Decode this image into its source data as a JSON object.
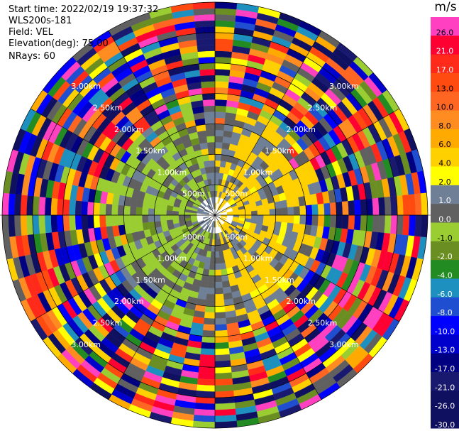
{
  "header": {
    "start_time": "Start time: 2022/02/19 19:37:32",
    "instrument": "WLS200s-181",
    "field": "Field: VEL",
    "elevation": "Elevation(deg): 75.00",
    "nrays": "NRays: 60"
  },
  "colorbar": {
    "unit": "m/s",
    "segments": [
      {
        "label": "26.0",
        "color": "#ff40c0"
      },
      {
        "label": "21.0",
        "color": "#ff0033"
      },
      {
        "label": "17.0",
        "color": "#ff2a1a"
      },
      {
        "label": "13.0",
        "color": "#ff4a10"
      },
      {
        "label": "10.0",
        "color": "#ff6622"
      },
      {
        "label": "8.0",
        "color": "#ff8c20"
      },
      {
        "label": "6.0",
        "color": "#ffaa00"
      },
      {
        "label": "4.0",
        "color": "#ffd000"
      },
      {
        "label": "2.0",
        "color": "#ffff00"
      },
      {
        "label": "1.0",
        "color": "#6e7f96"
      },
      {
        "label": "0.0",
        "color": "#606060"
      },
      {
        "label": "-1.0",
        "color": "#9acd32"
      },
      {
        "label": "-2.0",
        "color": "#6b8e23"
      },
      {
        "label": "-4.0",
        "color": "#228b22"
      },
      {
        "label": "-6.0",
        "color": "#1e90c0"
      },
      {
        "label": "-8.0",
        "color": "#1f4fd0"
      },
      {
        "label": "-10.0",
        "color": "#0000ff"
      },
      {
        "label": "-13.0",
        "color": "#0000cd"
      },
      {
        "label": "-17.0",
        "color": "#000080"
      },
      {
        "label": "-21.0",
        "color": "#191970"
      },
      {
        "label": "-26.0",
        "color": "#101060"
      },
      {
        "label": "-30.0",
        "color": "#101060"
      }
    ]
  },
  "chart_data": {
    "type": "heatmap",
    "projection": "polar PPI",
    "range_rings": [
      "500m",
      "1.00km",
      "1.50km",
      "2.00km",
      "2.50km",
      "3.00km"
    ],
    "range_ring_values_km": [
      0.5,
      1.0,
      1.5,
      2.0,
      2.5,
      3.0
    ],
    "max_range_km": 3.5,
    "n_rays": 60,
    "gate_spacing_km": 0.1,
    "note_colors_by_band": [
      {
        "range_km": [
          0.0,
          0.1
        ],
        "velocity_ms": "no data"
      },
      {
        "range_km": [
          0.1,
          1.8
        ],
        "velocity_ms": "-2 to 4"
      },
      {
        "range_km": [
          1.8,
          3.5
        ],
        "velocity_ms": "-30 to 26 (noise)"
      }
    ]
  }
}
